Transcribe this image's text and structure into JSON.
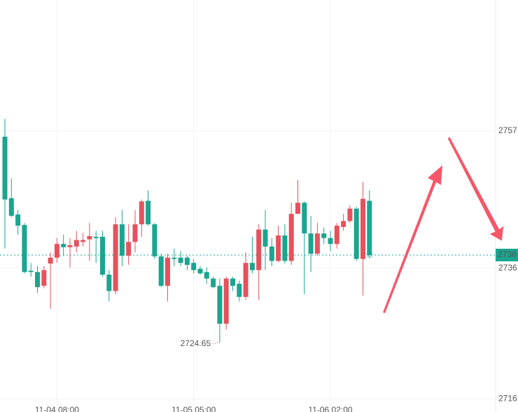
{
  "chart_data": {
    "type": "candlestick",
    "categories": [
      null,
      null,
      null,
      null,
      null,
      null,
      null,
      null,
      "11-04 08:00",
      null,
      null,
      null,
      null,
      null,
      null,
      null,
      null,
      null,
      null,
      null,
      null,
      null,
      null,
      null,
      null,
      null,
      null,
      null,
      null,
      "11-05 05:00",
      null,
      null,
      null,
      null,
      null,
      null,
      null,
      null,
      null,
      null,
      null,
      null,
      null,
      null,
      null,
      null,
      null,
      null,
      null,
      null,
      "11-06 02:00",
      null,
      null,
      null,
      null,
      null,
      null
    ],
    "open": [
      2756.1,
      2746.7,
      2744.2,
      2742.6,
      2735.6,
      2735.4,
      2733.3,
      2736.7,
      2737.6,
      2739.7,
      2739.2,
      2739.3,
      2740.0,
      2740.4,
      2740.8,
      2740.8,
      2735.0,
      2732.5,
      2742.7,
      2737.9,
      2740.0,
      2742.7,
      2746.3,
      2742.7,
      2737.8,
      2733.3,
      2737.6,
      2737.6,
      2737.6,
      2736.8,
      2735.9,
      2735.4,
      2734.4,
      2733.3,
      2727.5,
      2734.4,
      2733.6,
      2731.6,
      2736.8,
      2735.7,
      2741.9,
      2739.3,
      2737.1,
      2741.0,
      2737.1,
      2744.3,
      2746.0,
      2741.3,
      2738.2,
      2741.3,
      2740.6,
      2739.7,
      2742.3,
      2743.2,
      2745.1,
      2737.4,
      2746.3
    ],
    "high": [
      2758.8,
      2749.7,
      2744.9,
      2742.9,
      2736.8,
      2736.3,
      2736.3,
      2738.4,
      2740.6,
      2741.1,
      2740.6,
      2741.7,
      2741.4,
      2742.9,
      2741.7,
      2741.7,
      2735.7,
      2743.8,
      2744.9,
      2742.7,
      2744.9,
      2746.5,
      2747.9,
      2742.9,
      2738.2,
      2738.2,
      2739.0,
      2738.6,
      2737.9,
      2737.4,
      2736.3,
      2736.1,
      2734.7,
      2734.4,
      2734.7,
      2734.7,
      2734.1,
      2738.4,
      2740.8,
      2742.7,
      2744.9,
      2740.6,
      2742.5,
      2742.7,
      2746.0,
      2749.5,
      2746.2,
      2744.0,
      2742.9,
      2742.2,
      2741.7,
      2742.9,
      2744.3,
      2745.6,
      2745.4,
      2749.2,
      2747.9
    ],
    "low": [
      2739.0,
      2743.8,
      2741.1,
      2735.2,
      2734.7,
      2732.2,
      2732.9,
      2729.8,
      2736.8,
      2737.9,
      2736.1,
      2738.4,
      2739.3,
      2737.1,
      2736.8,
      2734.7,
      2730.9,
      2732.0,
      2736.3,
      2736.5,
      2738.4,
      2740.8,
      2742.5,
      2737.4,
      2733.1,
      2730.9,
      2736.3,
      2736.3,
      2735.7,
      2735.2,
      2735.0,
      2733.6,
      2732.9,
      2724.65,
      2726.6,
      2732.5,
      2730.9,
      2731.1,
      2735.2,
      2731.1,
      2735.7,
      2736.3,
      2736.9,
      2736.7,
      2736.5,
      2744.3,
      2732.0,
      2735.4,
      2737.9,
      2739.7,
      2738.6,
      2739.0,
      2741.7,
      2742.9,
      2737.1,
      2731.8,
      2737.6
    ],
    "close": [
      2746.5,
      2744.0,
      2742.5,
      2735.4,
      2735.4,
      2733.1,
      2735.7,
      2737.6,
      2739.7,
      2739.2,
      2739.5,
      2740.3,
      2740.3,
      2740.9,
      2740.6,
      2735.0,
      2732.5,
      2742.7,
      2737.9,
      2740.0,
      2742.7,
      2746.2,
      2742.7,
      2737.8,
      2733.3,
      2737.6,
      2737.4,
      2736.8,
      2736.5,
      2735.7,
      2735.2,
      2734.4,
      2733.1,
      2727.5,
      2734.4,
      2733.3,
      2731.6,
      2736.8,
      2735.7,
      2741.9,
      2739.3,
      2737.1,
      2741.0,
      2737.1,
      2744.3,
      2746.0,
      2741.3,
      2738.2,
      2741.3,
      2740.6,
      2739.7,
      2742.5,
      2743.2,
      2745.1,
      2737.4,
      2746.6,
      2738.0
    ],
    "current_price": 2738,
    "ylim": [
      2714,
      2777
    ],
    "yticks": [
      2716,
      2736,
      2757
    ],
    "grid": true,
    "up_color": "#e5525d",
    "down_color": "#1aa58f"
  }
}
